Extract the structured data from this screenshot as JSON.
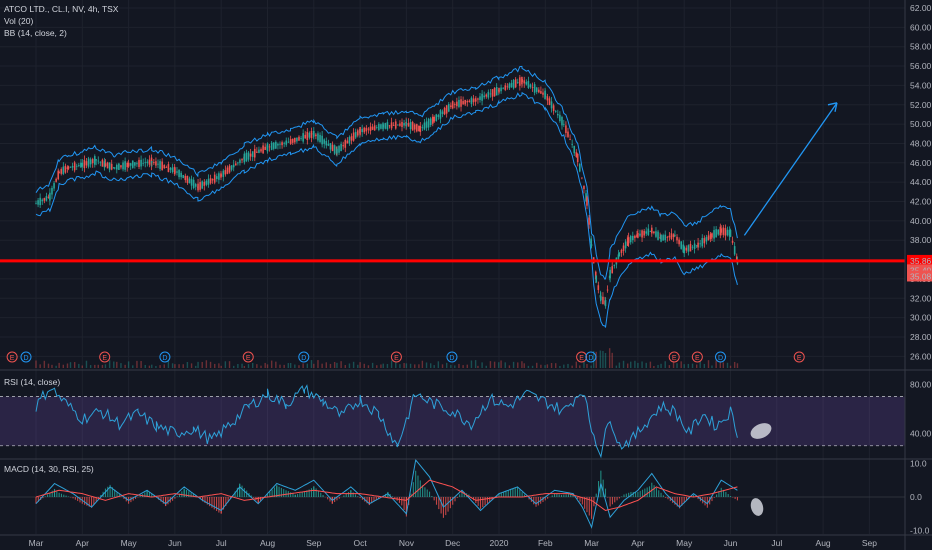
{
  "legend": {
    "symbol": "ATCO LTD., CL.I, NV, 4h, TSX",
    "vol": "Vol (20)",
    "bb": "BB (14, close, 2)",
    "rsi": "RSI (14, close)",
    "macd": "MACD (14, 30, RSI, 25)"
  },
  "colors": {
    "background": "#131722",
    "candle_up": "#26a69a",
    "candle_down": "#ef5350",
    "bollinger": "#2196f3",
    "support": "#ff0000",
    "rsi_line": "#2ea1d8",
    "rsi_band": "#7e57c2",
    "macd_line": "#2ea1d8",
    "signal_line": "#ff5252",
    "arrow": "#2196f3",
    "highlight": "#d1d4dc"
  },
  "chart_data": [
    {
      "type": "line",
      "name": "price",
      "x_ticks": [
        "Mar",
        "Apr",
        "May",
        "Jun",
        "Jul",
        "Aug",
        "Sep",
        "Oct",
        "Nov",
        "Dec",
        "2020",
        "Feb",
        "Mar",
        "Apr",
        "May",
        "Jun",
        "Jul",
        "Aug",
        "Sep"
      ],
      "y_ticks": [
        "62.00",
        "60.00",
        "58.00",
        "56.00",
        "54.00",
        "52.00",
        "50.00",
        "48.00",
        "46.00",
        "44.00",
        "42.00",
        "40.00",
        "38.00",
        "36.00",
        "34.00",
        "32.00",
        "30.00",
        "28.00",
        "26.00"
      ],
      "ylim": [
        25,
        62
      ],
      "price_labels": [
        "35.86",
        "35.40",
        "35.08"
      ],
      "support_level": 35.86,
      "projection": {
        "from": 38.5,
        "to": 52.2
      },
      "series": [
        {
          "x": [
            0,
            0.3,
            0.5,
            0.7,
            1.0,
            1.3,
            1.5,
            1.7,
            2.0,
            2.5,
            3.0,
            3.5,
            4.0,
            4.5,
            5.0,
            5.5,
            6.0,
            6.5,
            7.0,
            7.5,
            8.0,
            8.3,
            8.6,
            9.0,
            9.5,
            10.0,
            10.5,
            11.0,
            11.4,
            11.7,
            11.9,
            12.0,
            12.1,
            12.2,
            12.3,
            12.4,
            12.6,
            12.8,
            13.0,
            13.3,
            13.5,
            13.8,
            14.0,
            14.3,
            14.6,
            14.8,
            15.0,
            15.15
          ],
          "values": [
            41.8,
            42.5,
            45.0,
            45.5,
            45.8,
            46.3,
            45.8,
            45.5,
            45.8,
            46.1,
            45.2,
            43.5,
            44.7,
            46.5,
            47.6,
            48.2,
            49.0,
            47.2,
            49.3,
            49.8,
            50.0,
            49.5,
            50.5,
            52.0,
            52.5,
            53.5,
            54.5,
            53.0,
            50.0,
            46.5,
            42.0,
            37.5,
            34.0,
            32.0,
            31.5,
            34.5,
            36.5,
            38.0,
            38.5,
            39.0,
            38.2,
            38.5,
            37.0,
            37.5,
            38.5,
            39.0,
            38.7,
            35.8
          ]
        }
      ]
    },
    {
      "type": "line",
      "name": "RSI",
      "y_ticks": [
        "80.00",
        "40.00"
      ],
      "ylim": [
        20,
        90
      ],
      "band": [
        30,
        70
      ],
      "series": [
        {
          "x": [
            0,
            0.3,
            0.6,
            1.0,
            1.4,
            1.8,
            2.2,
            2.6,
            3.0,
            3.4,
            3.8,
            4.2,
            4.6,
            5.0,
            5.4,
            5.8,
            6.2,
            6.6,
            7.0,
            7.4,
            7.8,
            8.2,
            8.6,
            9.0,
            9.4,
            9.8,
            10.2,
            10.6,
            11.0,
            11.4,
            11.8,
            12.0,
            12.2,
            12.4,
            12.6,
            12.9,
            13.2,
            13.5,
            13.8,
            14.1,
            14.4,
            14.7,
            15.0,
            15.15
          ],
          "values": [
            62,
            78,
            66,
            52,
            58,
            48,
            56,
            46,
            40,
            44,
            34,
            48,
            62,
            72,
            64,
            76,
            66,
            54,
            68,
            56,
            30,
            72,
            64,
            58,
            48,
            68,
            62,
            72,
            66,
            58,
            76,
            44,
            24,
            54,
            30,
            36,
            50,
            62,
            58,
            40,
            56,
            46,
            58,
            40
          ]
        }
      ]
    },
    {
      "type": "line",
      "name": "MACD",
      "y_ticks": [
        "10.0",
        "0.0",
        "-10.0"
      ],
      "ylim": [
        -11,
        11
      ],
      "series": [
        {
          "name": "MACD",
          "x": [
            0,
            0.4,
            0.8,
            1.2,
            1.6,
            2.0,
            2.4,
            2.8,
            3.2,
            3.6,
            4.0,
            4.4,
            4.8,
            5.2,
            5.6,
            6.0,
            6.4,
            6.8,
            7.2,
            7.6,
            8.0,
            8.2,
            8.5,
            8.8,
            9.2,
            9.6,
            10.0,
            10.4,
            10.8,
            11.2,
            11.6,
            11.8,
            12.0,
            12.2,
            12.4,
            12.7,
            13.0,
            13.3,
            13.6,
            13.9,
            14.2,
            14.5,
            14.8,
            15.15
          ],
          "values": [
            -2,
            4,
            1,
            -3,
            3,
            -1,
            2,
            -2,
            3,
            -1,
            -4,
            3,
            -2,
            4,
            2,
            5,
            -1,
            3,
            -2,
            1,
            -5,
            11,
            6,
            -3,
            2,
            -4,
            1,
            3,
            -2,
            2,
            1,
            -3,
            -9,
            4,
            -6,
            -1,
            2,
            7,
            1,
            -3,
            1,
            -2,
            5,
            2
          ]
        },
        {
          "name": "Signal",
          "x": [
            0,
            0.5,
            1.0,
            1.5,
            2.0,
            2.5,
            3.0,
            3.5,
            4.0,
            4.5,
            5.0,
            5.5,
            6.0,
            6.5,
            7.0,
            7.5,
            8.0,
            8.5,
            9.0,
            9.5,
            10.0,
            10.5,
            11.0,
            11.5,
            12.0,
            12.3,
            12.6,
            13.0,
            13.4,
            13.8,
            14.2,
            14.6,
            15.15
          ],
          "values": [
            0,
            2,
            1,
            -1,
            1,
            0,
            1,
            0,
            1,
            -1,
            0,
            1,
            2,
            1,
            1,
            0,
            -1,
            5,
            3,
            -1,
            0,
            0,
            1,
            1,
            -1,
            -4,
            -3,
            -1,
            3,
            1,
            0,
            1,
            3
          ]
        }
      ]
    }
  ]
}
